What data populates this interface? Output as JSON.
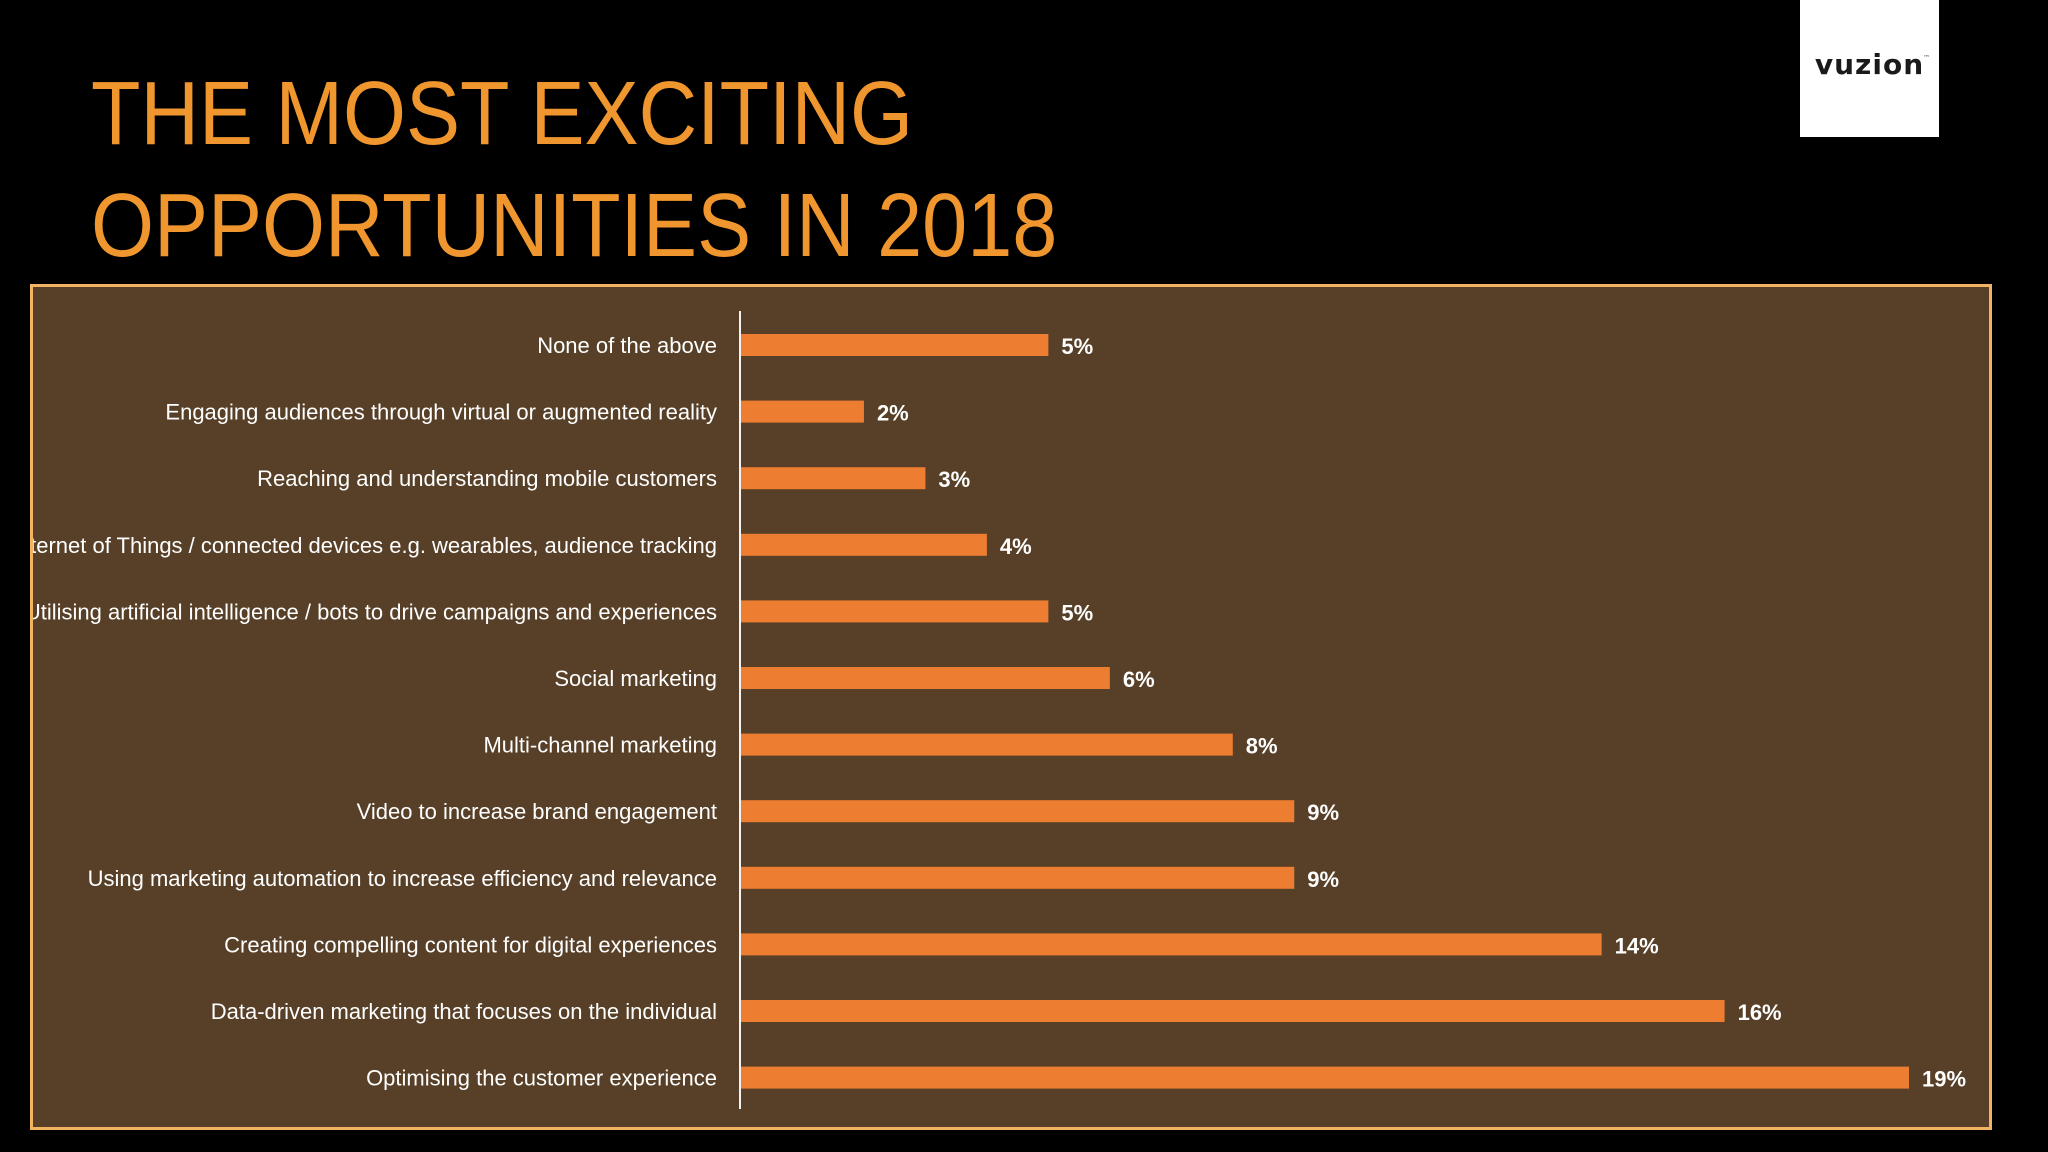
{
  "title": {
    "line1": "THE MOST EXCITING",
    "line2": "OPPORTUNITIES IN 2018"
  },
  "logo": {
    "text": "vuzion",
    "mark": "™"
  },
  "colors": {
    "background": "#000000",
    "title": "#f0962e",
    "panel_fill": "#574027",
    "panel_border": "#f2b463",
    "bar": "#ed7d31",
    "text": "#ffffff"
  },
  "chart_data": {
    "type": "bar",
    "orientation": "horizontal",
    "categories": [
      "None of the above",
      "Engaging audiences through virtual or augmented reality",
      "Reaching and understanding mobile customers",
      "Internet of Things / connected devices e.g. wearables, audience tracking",
      "Utilising artificial intelligence / bots to drive campaigns and experiences",
      "Social marketing",
      "Multi-channel marketing",
      "Video to increase brand engagement",
      "Using marketing automation to increase efficiency and relevance",
      "Creating compelling content for digital experiences",
      "Data-driven marketing that focuses on the individual",
      "Optimising the customer experience"
    ],
    "values": [
      5,
      2,
      3,
      4,
      5,
      6,
      8,
      9,
      9,
      14,
      16,
      19
    ],
    "value_labels": [
      "5%",
      "2%",
      "3%",
      "4%",
      "5%",
      "6%",
      "8%",
      "9%",
      "9%",
      "14%",
      "16%",
      "19%"
    ],
    "xlim": [
      0,
      19
    ],
    "grid": false,
    "legend": "none"
  }
}
